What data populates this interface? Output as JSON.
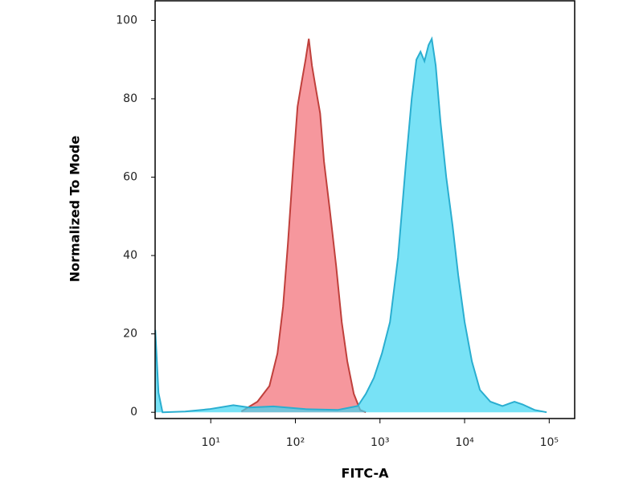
{
  "chart_data": {
    "type": "area",
    "x_label": "FITC-A",
    "y_label": "Normalized To Mode",
    "log_x": true,
    "xlim": [
      2.2,
      200000
    ],
    "ylim": [
      -1.6,
      105
    ],
    "xticks": [
      {
        "value": 10,
        "label": "10¹"
      },
      {
        "value": 100,
        "label": "10²"
      },
      {
        "value": 1000,
        "label": "10³"
      },
      {
        "value": 10000,
        "label": "10⁴"
      },
      {
        "value": 100000,
        "label": "10⁵"
      }
    ],
    "yticks": [
      0,
      20,
      40,
      60,
      80,
      100
    ],
    "series": [
      {
        "color": "#f26b74",
        "stroke": "#c0403c",
        "x": [
          23,
          35.6,
          49.3,
          61.4,
          71.6,
          81.6,
          95,
          106,
          118,
          132,
          144,
          157,
          175,
          196,
          218,
          255,
          303,
          353,
          411,
          490,
          583,
          681
        ],
        "values": [
          0.2,
          2.7,
          6.7,
          15,
          27,
          43,
          64,
          78,
          84,
          90,
          95.3,
          88.5,
          82.4,
          76.3,
          64,
          51.7,
          37.4,
          23,
          13,
          4.7,
          0.6,
          0
        ]
      },
      {
        "color": "#3fd6f2",
        "stroke": "#2aaed0",
        "x": [
          2.21,
          2.41,
          2.69,
          4.97,
          9.6,
          18.5,
          28.6,
          55,
          132,
          316,
          547,
          681,
          847,
          1054,
          1312,
          1633,
          2032,
          2367,
          2698,
          3011,
          3357,
          3748,
          4090,
          4560,
          5200,
          6063,
          7214,
          8409,
          10020,
          12190,
          15170,
          20180,
          28000,
          38900,
          48400,
          67100,
          93300
        ],
        "values": [
          21,
          5,
          0,
          0.2,
          0.8,
          1.8,
          1.2,
          1.5,
          0.8,
          0.6,
          1.6,
          4.7,
          8.8,
          15,
          23,
          39.5,
          64,
          80,
          90,
          92,
          89.6,
          93.7,
          95.3,
          88.5,
          74,
          60,
          47.6,
          35,
          23,
          13,
          5.7,
          2.7,
          1.6,
          2.7,
          2.0,
          0.6,
          0
        ]
      }
    ]
  }
}
